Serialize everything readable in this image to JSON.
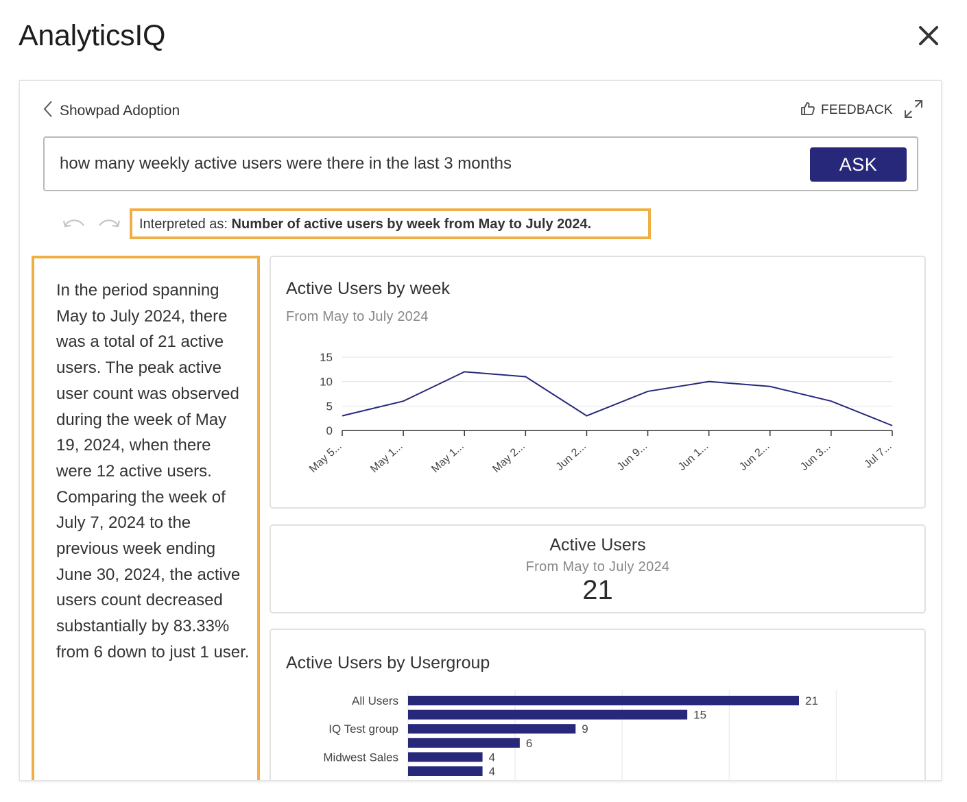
{
  "app": {
    "title": "AnalyticsIQ"
  },
  "header": {
    "breadcrumb": "Showpad Adoption",
    "feedback_label": "FEEDBACK"
  },
  "query": {
    "value": "how many weekly active users were there in the last 3 months",
    "ask_label": "ASK"
  },
  "interpretation": {
    "prefix": "Interpreted as:",
    "text": "Number of active users by week from May to July 2024."
  },
  "narrative": "In the period spanning May to July 2024, there was a total of 21 active users. The peak active user count was observed during the week of May 19, 2024, when there were 12 active users. Comparing the week of July 7, 2024 to the previous week ending June 30, 2024, the active users count decreased substantially by 83.33% from 6 down to just 1 user.",
  "cards": {
    "line": {
      "title": "Active Users by week",
      "subtitle": "From May to July 2024"
    },
    "kpi": {
      "title": "Active Users",
      "subtitle": "From May to July 2024",
      "value": "21"
    },
    "bar": {
      "title": "Active Users by Usergroup"
    }
  },
  "colors": {
    "accent": "#27287a",
    "highlight": "#f0ae45",
    "series": "#27287a"
  },
  "icons": [
    "close-icon",
    "chevron-left-icon",
    "thumbs-up-icon",
    "expand-icon",
    "undo-icon",
    "redo-icon"
  ],
  "chart_data": [
    {
      "type": "line",
      "title": "Active Users by week",
      "subtitle": "From May to July 2024",
      "categories": [
        "May 5...",
        "May 1...",
        "May 1...",
        "May 2...",
        "Jun 2...",
        "Jun 9...",
        "Jun 1...",
        "Jun 2...",
        "Jun 3...",
        "Jul 7..."
      ],
      "values": [
        3,
        6,
        12,
        11,
        3,
        8,
        10,
        9,
        6,
        1
      ],
      "yticks": [
        0,
        5,
        10,
        15
      ],
      "ylim": [
        0,
        15
      ],
      "grid": true
    },
    {
      "type": "bar",
      "orientation": "horizontal",
      "title": "Active Users by Usergroup",
      "categories": [
        "All Users",
        "",
        "IQ Test group",
        "",
        "Midwest Sales",
        ""
      ],
      "values": [
        21,
        15,
        9,
        6,
        4,
        4
      ],
      "grid": true
    }
  ]
}
